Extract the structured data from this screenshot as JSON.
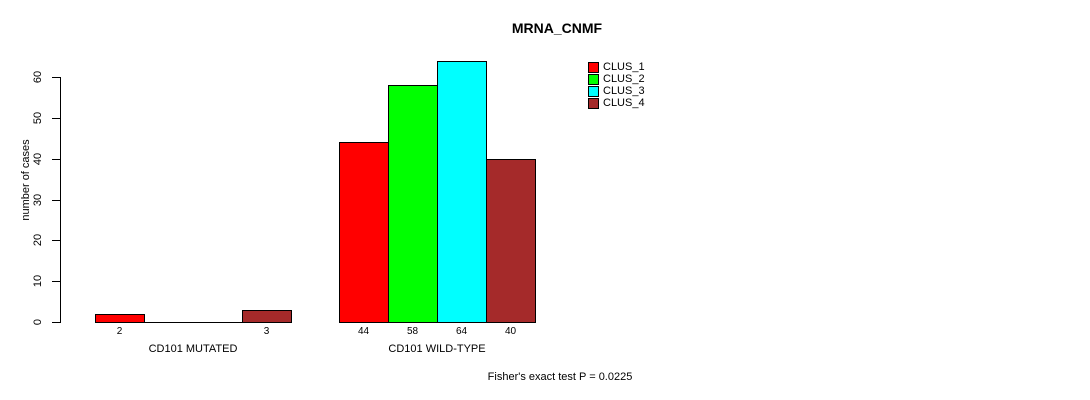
{
  "title": "MRNA_CNMF",
  "footnote": "Fisher's exact test P = 0.0225",
  "colors": {
    "background": "#ffffff",
    "axis": "#000000",
    "bar_border": "#000000",
    "clus_1": "#ff0000",
    "clus_2": "#00ff00",
    "clus_3": "#00ffff",
    "clus_4": "#a52a2a"
  },
  "chart_data": {
    "type": "bar",
    "title": "MRNA_CNMF",
    "xlabel": "",
    "ylabel": "number of cases",
    "ylim": [
      0,
      65
    ],
    "yticks": [
      0,
      10,
      20,
      30,
      40,
      50,
      60
    ],
    "grid": false,
    "categories": [
      "CD101 MUTATED",
      "CD101 WILD-TYPE"
    ],
    "series": [
      {
        "name": "CLUS_1",
        "color": "#ff0000",
        "values": [
          2,
          44
        ]
      },
      {
        "name": "CLUS_2",
        "color": "#00ff00",
        "values": [
          0,
          58
        ]
      },
      {
        "name": "CLUS_3",
        "color": "#00ffff",
        "values": [
          0,
          64
        ]
      },
      {
        "name": "CLUS_4",
        "color": "#a52a2a",
        "values": [
          3,
          40
        ]
      }
    ],
    "bar_value_labels": true,
    "zero_value_labels_hidden": true,
    "legend": {
      "position": "top-right-inner",
      "entries": [
        {
          "label": "CLUS_1",
          "color": "#ff0000"
        },
        {
          "label": "CLUS_2",
          "color": "#00ff00"
        },
        {
          "label": "CLUS_3",
          "color": "#00ffff"
        },
        {
          "label": "CLUS_4",
          "color": "#a52a2a"
        }
      ]
    },
    "annotation": "Fisher's exact test P = 0.0225"
  }
}
